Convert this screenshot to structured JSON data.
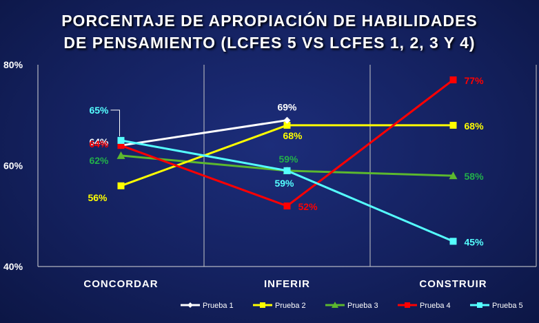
{
  "title_line1": "PORCENTAJE DE APROPIACIÓN DE HABILIDADES",
  "title_line2": "DE PENSAMIENTO (LCFES 5 VS LCFES 1, 2, 3 Y 4)",
  "chart_data": {
    "type": "line",
    "categories": [
      "CONCORDAR",
      "INFERIR",
      "CONSTRUIR"
    ],
    "ylim": [
      40,
      80
    ],
    "yticks": [
      "80%",
      "60%",
      "40%"
    ],
    "grid": "vertical",
    "legend_position": "bottom",
    "series": [
      {
        "name": "Prueba 1",
        "values": [
          64,
          69,
          null
        ],
        "labels": [
          "64%",
          "69%",
          ""
        ],
        "color": "#ffffff",
        "marker": "diamond"
      },
      {
        "name": "Prueba 2",
        "values": [
          56,
          68,
          68
        ],
        "labels": [
          "56%",
          "68%",
          "68%"
        ],
        "color": "#ffff00",
        "marker": "square"
      },
      {
        "name": "Prueba 3",
        "values": [
          62,
          59,
          58
        ],
        "labels": [
          "62%",
          "59%",
          "58%"
        ],
        "color": "#5cb82e",
        "label_color": "#22b04a",
        "marker": "triangle"
      },
      {
        "name": "Prueba 4",
        "values": [
          64,
          52,
          77
        ],
        "labels": [
          "64%",
          "52%",
          "77%"
        ],
        "color": "#ff0000",
        "marker": "square"
      },
      {
        "name": "Prueba 5",
        "values": [
          65,
          59,
          45
        ],
        "labels": [
          "65%",
          "59%",
          "45%"
        ],
        "color": "#55ffff",
        "marker": "square"
      }
    ]
  }
}
